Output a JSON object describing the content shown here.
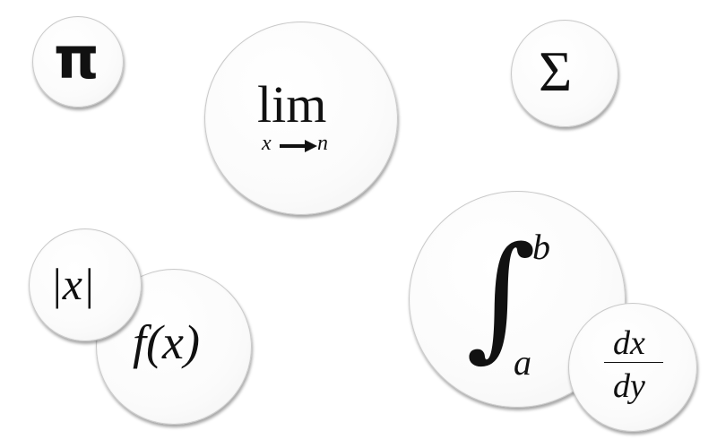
{
  "symbols": {
    "pi": "π",
    "sigma": "Σ",
    "lim": {
      "word": "lim",
      "sub_var": "x",
      "sub_target": "n"
    },
    "abs": "|x|",
    "func": "f(x)",
    "integral": {
      "sign": "∫",
      "upper": "b",
      "lower": "a"
    },
    "derivative": {
      "numerator": "dx",
      "denominator": "dy"
    }
  }
}
